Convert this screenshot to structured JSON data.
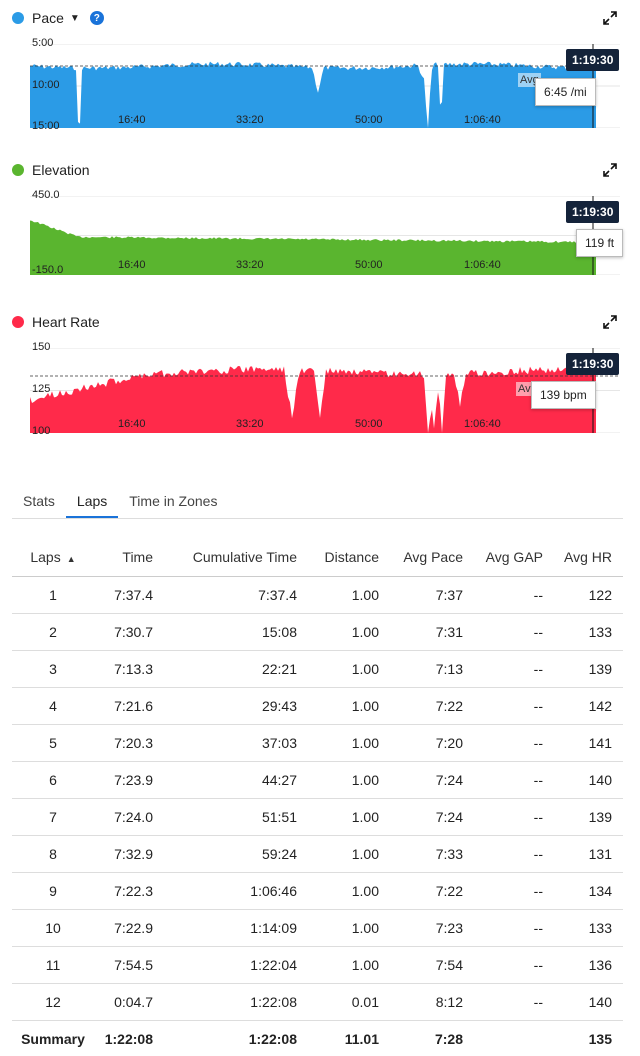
{
  "charts": [
    {
      "label": "Pace",
      "color": "#2b9be6",
      "caret": "▼",
      "help": "?",
      "y_ticks": [
        "5:00",
        "10:00",
        "15:00"
      ],
      "x_ticks": [
        "16:40",
        "33:20",
        "50:00",
        "1:06:40"
      ],
      "cursor_time": "1:19:30",
      "cursor_value": "6:45 /mi",
      "avg_label": "Avg"
    },
    {
      "label": "Elevation",
      "color": "#5ab52f",
      "y_ticks": [
        "450.0",
        "-150.0"
      ],
      "x_ticks": [
        "16:40",
        "33:20",
        "50:00",
        "1:06:40"
      ],
      "cursor_time": "1:19:30",
      "cursor_value": "119 ft"
    },
    {
      "label": "Heart Rate",
      "color": "#ff2a4a",
      "y_ticks": [
        "150",
        "125",
        "100"
      ],
      "x_ticks": [
        "16:40",
        "33:20",
        "50:00",
        "1:06:40"
      ],
      "cursor_time": "1:19:30",
      "cursor_value": "139 bpm",
      "avg_label": "Avg"
    }
  ],
  "tabs": [
    "Stats",
    "Laps",
    "Time in Zones"
  ],
  "active_tab": "Laps",
  "table": {
    "columns": [
      "Laps",
      "Time",
      "Cumulative Time",
      "Distance",
      "Avg Pace",
      "Avg GAP",
      "Avg HR"
    ],
    "sort_indicator": "▲",
    "rows": [
      [
        "1",
        "7:37.4",
        "7:37.4",
        "1.00",
        "7:37",
        "--",
        "122"
      ],
      [
        "2",
        "7:30.7",
        "15:08",
        "1.00",
        "7:31",
        "--",
        "133"
      ],
      [
        "3",
        "7:13.3",
        "22:21",
        "1.00",
        "7:13",
        "--",
        "139"
      ],
      [
        "4",
        "7:21.6",
        "29:43",
        "1.00",
        "7:22",
        "--",
        "142"
      ],
      [
        "5",
        "7:20.3",
        "37:03",
        "1.00",
        "7:20",
        "--",
        "141"
      ],
      [
        "6",
        "7:23.9",
        "44:27",
        "1.00",
        "7:24",
        "--",
        "140"
      ],
      [
        "7",
        "7:24.0",
        "51:51",
        "1.00",
        "7:24",
        "--",
        "139"
      ],
      [
        "8",
        "7:32.9",
        "59:24",
        "1.00",
        "7:33",
        "--",
        "131"
      ],
      [
        "9",
        "7:22.3",
        "1:06:46",
        "1.00",
        "7:22",
        "--",
        "134"
      ],
      [
        "10",
        "7:22.9",
        "1:14:09",
        "1.00",
        "7:23",
        "--",
        "133"
      ],
      [
        "11",
        "7:54.5",
        "1:22:04",
        "1.00",
        "7:54",
        "--",
        "136"
      ],
      [
        "12",
        "0:04.7",
        "1:22:08",
        "0.01",
        "8:12",
        "--",
        "140"
      ]
    ],
    "summary": [
      "Summary",
      "1:22:08",
      "1:22:08",
      "11.01",
      "7:28",
      "",
      "135"
    ]
  }
}
